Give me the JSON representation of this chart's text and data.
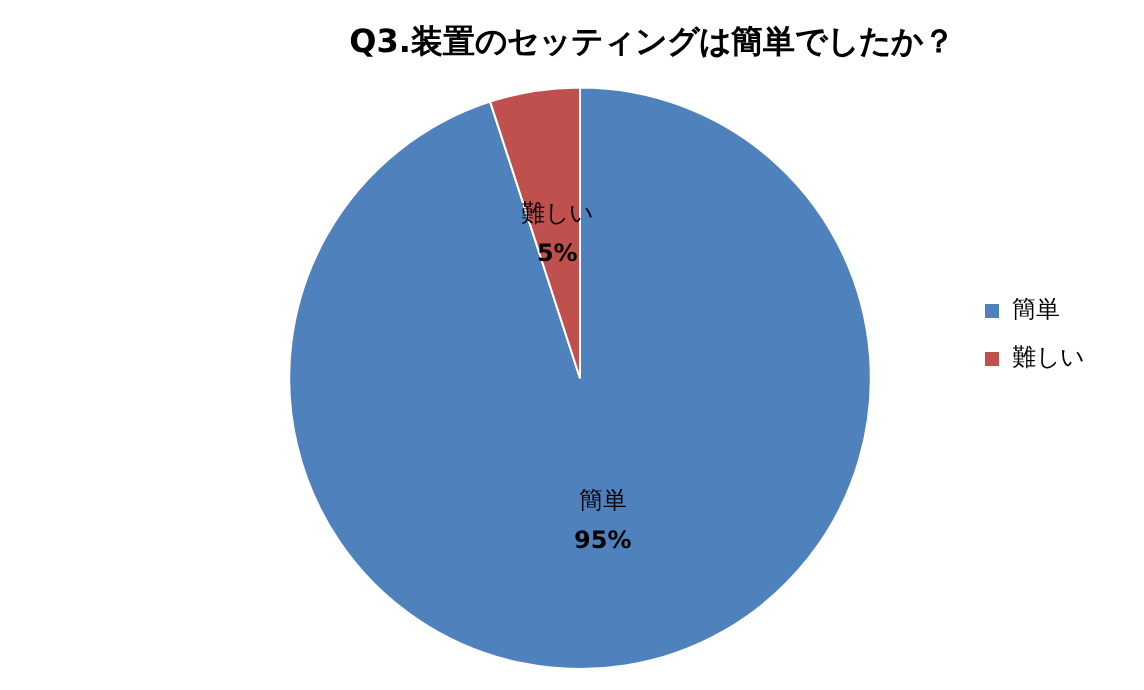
{
  "chart_data": {
    "type": "pie",
    "title": "Q3.装置のセッティングは簡単でしたか？",
    "categories": [
      "簡単",
      "難しい"
    ],
    "values": [
      95,
      5
    ],
    "colors": [
      "#4f81bd",
      "#c0504d"
    ],
    "value_labels": [
      "95%",
      "5%"
    ],
    "legend": "right"
  }
}
